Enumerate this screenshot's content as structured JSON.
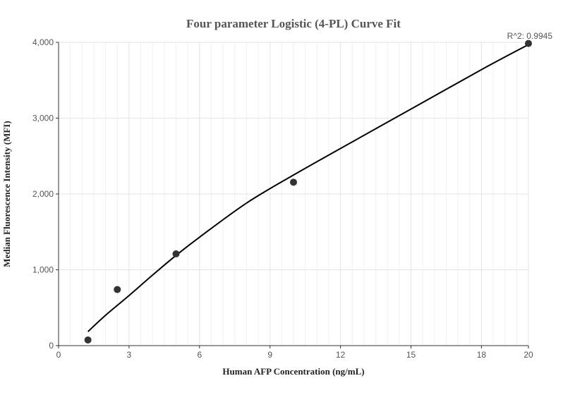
{
  "chart_data": {
    "type": "scatter",
    "title": "Four parameter Logistic (4-PL) Curve Fit",
    "xlabel": "Human AFP Concentration (ng/mL)",
    "ylabel": "Median Fluorescence Intensity (MFI)",
    "xlim": [
      0,
      20
    ],
    "ylim": [
      0,
      4000
    ],
    "x_ticks": [
      0,
      3,
      6,
      9,
      12,
      15,
      18,
      20
    ],
    "x_tick_labels": [
      "0",
      "3",
      "6",
      "9",
      "12",
      "15",
      "18",
      "20"
    ],
    "y_ticks": [
      0,
      1000,
      2000,
      3000,
      4000
    ],
    "y_tick_labels": [
      "0",
      "1,000",
      "2,000",
      "3,000",
      "4,000"
    ],
    "grid": true,
    "points": {
      "x": [
        1.25,
        2.5,
        5,
        10,
        20
      ],
      "y": [
        75,
        740,
        1210,
        2155,
        3985
      ]
    },
    "fit_curve": {
      "x": [
        1.25,
        2,
        3,
        4,
        5,
        6,
        8,
        10,
        12,
        15,
        18,
        20
      ],
      "y": [
        185,
        400,
        660,
        930,
        1190,
        1430,
        1880,
        2250,
        2600,
        3120,
        3640,
        3970
      ]
    },
    "annotation": "R^2: 0.9945"
  }
}
